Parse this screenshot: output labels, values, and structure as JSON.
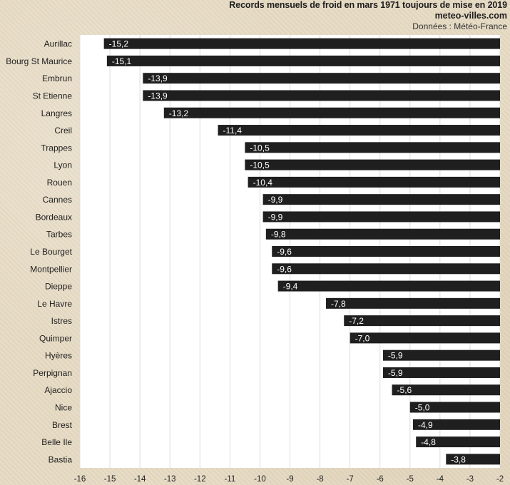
{
  "header": {
    "title": "Records mensuels de froid en mars 1971 toujours de mise en 2019",
    "site": "meteo-villes.com",
    "source": "Données : Météo-France"
  },
  "chart_data": {
    "type": "bar",
    "orientation": "horizontal",
    "title": "Records mensuels de froid en mars 1971 toujours de mise en 2019",
    "xlim": [
      -16,
      -2
    ],
    "xticks": [
      "-16",
      "-15",
      "-14",
      "-13",
      "-12",
      "-11",
      "-10",
      "-9",
      "-8",
      "-7",
      "-6",
      "-5",
      "-4",
      "-3",
      "-2"
    ],
    "grid": true,
    "categories": [
      "Aurillac",
      "Bourg St Maurice",
      "Embrun",
      "St Etienne",
      "Langres",
      "Creil",
      "Trappes",
      "Lyon",
      "Rouen",
      "Cannes",
      "Bordeaux",
      "Tarbes",
      "Le Bourget",
      "Montpellier",
      "Dieppe",
      "Le Havre",
      "Istres",
      "Quimper",
      "Hyères",
      "Perpignan",
      "Ajaccio",
      "Nice",
      "Brest",
      "Belle Ile",
      "Bastia"
    ],
    "values": [
      -15.2,
      -15.1,
      -13.9,
      -13.9,
      -13.2,
      -11.4,
      -10.5,
      -10.5,
      -10.4,
      -9.9,
      -9.9,
      -9.8,
      -9.6,
      -9.6,
      -9.4,
      -7.8,
      -7.2,
      -7.0,
      -5.9,
      -5.9,
      -5.6,
      -5.0,
      -4.9,
      -4.8,
      -3.8
    ],
    "data_labels": [
      "-15,2",
      "-15,1",
      "-13,9",
      "-13,9",
      "-13,2",
      "-11,4",
      "-10,5",
      "-10,5",
      "-10,4",
      "-9,9",
      "-9,9",
      "-9,8",
      "-9,6",
      "-9,6",
      "-9,4",
      "-7,8",
      "-7,2",
      "-7,0",
      "-5,9",
      "-5,9",
      "-5,6",
      "-5,0",
      "-4,9",
      "-4,8",
      "-3,8"
    ],
    "colors": {
      "bar": "#1f1f1f",
      "plot_bg": "#ffffff",
      "grid": "#dcdcdc",
      "label": "#ffffff"
    }
  }
}
